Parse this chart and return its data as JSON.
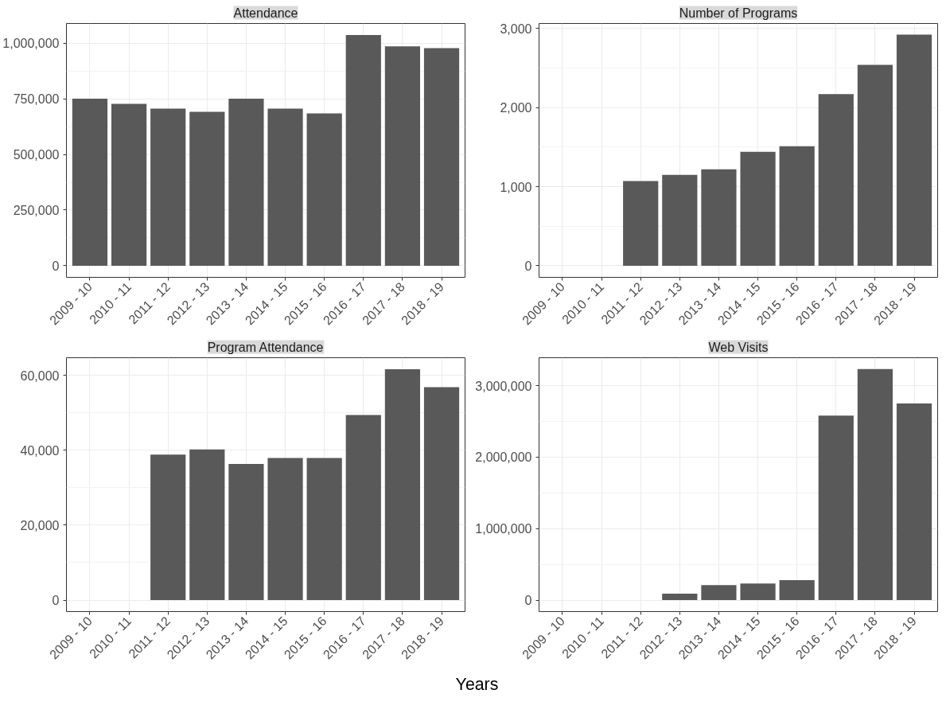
{
  "chart_data": [
    {
      "type": "bar",
      "title": "Attendance",
      "categories": [
        "2009 - 10",
        "2010 - 11",
        "2011 - 12",
        "2012 - 13",
        "2013 - 14",
        "2014 - 15",
        "2015 - 16",
        "2016 - 17",
        "2017 - 18",
        "2018 - 19"
      ],
      "color": "#595959",
      "values": [
        750000,
        727000,
        706000,
        691000,
        750000,
        706000,
        684000,
        1036000,
        985000,
        977000
      ],
      "ylim": [
        -52000,
        1088000
      ],
      "yticks": [
        {
          "value": 0,
          "label": "0"
        },
        {
          "value": 250000,
          "label": "250,000"
        },
        {
          "value": 500000,
          "label": "500,000"
        },
        {
          "value": 750000,
          "label": "750,000"
        },
        {
          "value": 1000000,
          "label": "1,000,000"
        }
      ],
      "grid": true
    },
    {
      "type": "bar",
      "title": "Number of Programs",
      "categories": [
        "2009 - 10",
        "2010 - 11",
        "2011 - 12",
        "2012 - 13",
        "2013 - 14",
        "2014 - 15",
        "2015 - 16",
        "2016 - 17",
        "2017 - 18",
        "2018 - 19"
      ],
      "color": "#595959",
      "values": [
        null,
        null,
        1070,
        1150,
        1220,
        1440,
        1510,
        2170,
        2540,
        2920
      ],
      "ylim": [
        -146,
        3062
      ],
      "yticks": [
        {
          "value": 0,
          "label": "0"
        },
        {
          "value": 1000,
          "label": "1,000"
        },
        {
          "value": 2000,
          "label": "2,000"
        },
        {
          "value": 3000,
          "label": "3,000"
        }
      ],
      "grid": true
    },
    {
      "type": "bar",
      "title": "Program Attendance",
      "categories": [
        "2009 - 10",
        "2010 - 11",
        "2011 - 12",
        "2012 - 13",
        "2013 - 14",
        "2014 - 15",
        "2015 - 16",
        "2016 - 17",
        "2017 - 18",
        "2018 - 19"
      ],
      "color": "#595959",
      "values": [
        null,
        null,
        38800,
        40200,
        36300,
        37900,
        37900,
        49400,
        61600,
        56800
      ],
      "ylim": [
        -3080,
        64680
      ],
      "yticks": [
        {
          "value": 0,
          "label": "0"
        },
        {
          "value": 20000,
          "label": "20,000"
        },
        {
          "value": 40000,
          "label": "40,000"
        },
        {
          "value": 60000,
          "label": "60,000"
        }
      ],
      "grid": true
    },
    {
      "type": "bar",
      "title": "Web Visits",
      "xlabel": "Years",
      "categories": [
        "2009 - 10",
        "2010 - 11",
        "2011 - 12",
        "2012 - 13",
        "2013 - 14",
        "2014 - 15",
        "2015 - 16",
        "2016 - 17",
        "2017 - 18",
        "2018 - 19"
      ],
      "color": "#595959",
      "values": [
        null,
        null,
        null,
        90000,
        210000,
        230000,
        280000,
        2580000,
        3230000,
        2750000
      ],
      "ylim": [
        -161000,
        3390000
      ],
      "yticks": [
        {
          "value": 0,
          "label": "0"
        },
        {
          "value": 1000000,
          "label": "1,000,000"
        },
        {
          "value": 2000000,
          "label": "2,000,000"
        },
        {
          "value": 3000000,
          "label": "3,000,000"
        }
      ],
      "grid": true
    }
  ]
}
